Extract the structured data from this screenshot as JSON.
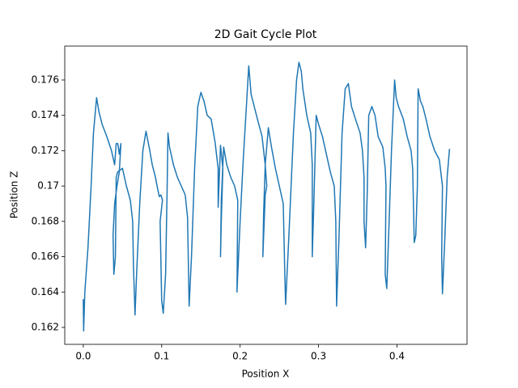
{
  "chart_data": {
    "type": "line",
    "title": "2D Gait Cycle Plot",
    "xlabel": "Position X",
    "ylabel": "Position Z",
    "x": [
      0.0,
      0.0005,
      0.002,
      0.006,
      0.01,
      0.013,
      0.017,
      0.02,
      0.024,
      0.03,
      0.036,
      0.04,
      0.042,
      0.044,
      0.046,
      0.048,
      0.046,
      0.043,
      0.04,
      0.038,
      0.039,
      0.041,
      0.042,
      0.044,
      0.05,
      0.055,
      0.06,
      0.063,
      0.064,
      0.066,
      0.068,
      0.072,
      0.076,
      0.08,
      0.084,
      0.088,
      0.092,
      0.095,
      0.097,
      0.099,
      0.101,
      0.098,
      0.1,
      0.102,
      0.105,
      0.107,
      0.108,
      0.11,
      0.115,
      0.12,
      0.125,
      0.13,
      0.133,
      0.135,
      0.138,
      0.142,
      0.146,
      0.15,
      0.154,
      0.158,
      0.163,
      0.168,
      0.172,
      0.172,
      0.172,
      0.175,
      0.178,
      0.176,
      0.175,
      0.176,
      0.179,
      0.183,
      0.188,
      0.193,
      0.197,
      0.196,
      0.197,
      0.2,
      0.204,
      0.208,
      0.211,
      0.214,
      0.218,
      0.222,
      0.228,
      0.23,
      0.232,
      0.234,
      0.232,
      0.229,
      0.23,
      0.232,
      0.236,
      0.24,
      0.245,
      0.25,
      0.255,
      0.257,
      0.258,
      0.262,
      0.268,
      0.272,
      0.275,
      0.278,
      0.28,
      0.285,
      0.29,
      0.292,
      0.292,
      0.292,
      0.294,
      0.297,
      0.3,
      0.305,
      0.31,
      0.315,
      0.32,
      0.322,
      0.323,
      0.326,
      0.33,
      0.334,
      0.338,
      0.342,
      0.347,
      0.353,
      0.356,
      0.358,
      0.358,
      0.36,
      0.362,
      0.364,
      0.368,
      0.372,
      0.376,
      0.382,
      0.385,
      0.386,
      0.385,
      0.387,
      0.39,
      0.393,
      0.397,
      0.399,
      0.402,
      0.408,
      0.413,
      0.418,
      0.42,
      0.421,
      0.422,
      0.424,
      0.426,
      0.427,
      0.43,
      0.433,
      0.437,
      0.442,
      0.448,
      0.454,
      0.458,
      0.457,
      0.458,
      0.461,
      0.464,
      0.467
    ],
    "series": [
      {
        "color": "#1f77b4",
        "values": [
          0.1636,
          0.1618,
          0.164,
          0.1665,
          0.17,
          0.173,
          0.175,
          0.1742,
          0.1735,
          0.1728,
          0.172,
          0.1712,
          0.1724,
          0.1724,
          0.1718,
          0.1724,
          0.1708,
          0.17,
          0.169,
          0.1672,
          0.165,
          0.166,
          0.1705,
          0.1708,
          0.171,
          0.17,
          0.1692,
          0.168,
          0.1655,
          0.1627,
          0.165,
          0.169,
          0.172,
          0.1731,
          0.1722,
          0.1712,
          0.1705,
          0.1698,
          0.1694,
          0.1695,
          0.1692,
          0.168,
          0.1635,
          0.1628,
          0.165,
          0.17,
          0.173,
          0.1722,
          0.1712,
          0.1705,
          0.17,
          0.1695,
          0.1682,
          0.1632,
          0.166,
          0.171,
          0.1745,
          0.1753,
          0.1748,
          0.174,
          0.1738,
          0.1725,
          0.171,
          0.169,
          0.1688,
          0.1723,
          0.171,
          0.168,
          0.166,
          0.1692,
          0.1722,
          0.1712,
          0.1705,
          0.17,
          0.1692,
          0.164,
          0.165,
          0.168,
          0.1715,
          0.1745,
          0.1768,
          0.1752,
          0.1745,
          0.1738,
          0.1728,
          0.172,
          0.1712,
          0.17,
          0.1695,
          0.166,
          0.1685,
          0.1712,
          0.1733,
          0.1722,
          0.171,
          0.17,
          0.169,
          0.165,
          0.1633,
          0.167,
          0.173,
          0.176,
          0.177,
          0.1765,
          0.1755,
          0.174,
          0.173,
          0.1712,
          0.168,
          0.166,
          0.169,
          0.174,
          0.1735,
          0.1728,
          0.1718,
          0.1708,
          0.17,
          0.168,
          0.1632,
          0.167,
          0.173,
          0.1755,
          0.1758,
          0.1745,
          0.1738,
          0.173,
          0.172,
          0.1705,
          0.168,
          0.1665,
          0.1695,
          0.174,
          0.1745,
          0.174,
          0.1728,
          0.1722,
          0.171,
          0.17,
          0.165,
          0.1642,
          0.168,
          0.172,
          0.176,
          0.175,
          0.1745,
          0.1738,
          0.1728,
          0.172,
          0.171,
          0.169,
          0.1668,
          0.1672,
          0.17,
          0.1755,
          0.1748,
          0.1745,
          0.1738,
          0.1728,
          0.172,
          0.1715,
          0.17,
          0.166,
          0.1639,
          0.167,
          0.1705,
          0.1721
        ]
      }
    ],
    "xlim": [
      -0.0236,
      0.4893
    ],
    "ylim": [
      0.16104,
      0.17792
    ],
    "xticks": [
      {
        "value": 0,
        "label": "0.0"
      },
      0.1,
      0.2,
      0.3,
      0.4
    ],
    "yticks": [
      0.162,
      0.164,
      0.166,
      0.168,
      0.17,
      0.172,
      0.174,
      0.176
    ]
  }
}
